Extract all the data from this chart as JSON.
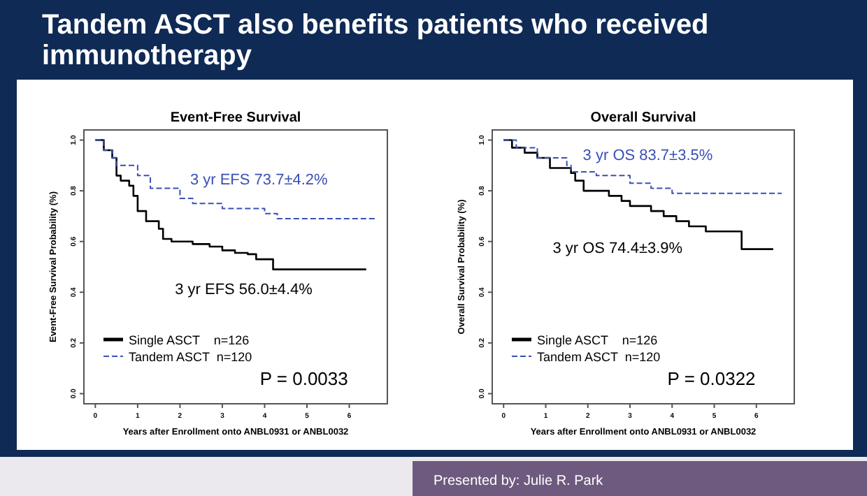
{
  "chart_data": [
    {
      "type": "step",
      "title": "Event-Free Survival",
      "xlabel": "Years after Enrollment onto ANBL0931 or ANBL0032",
      "ylabel": "Event-Free Survival Probability (%)",
      "xlim": [
        -0.27,
        6.9
      ],
      "xticks": [
        0,
        1,
        2,
        3,
        4,
        5,
        6
      ],
      "ylim": [
        -0.04,
        1.04
      ],
      "yticks": [
        {
          "value": 0,
          "label": "0.0"
        },
        {
          "value": 0.2,
          "label": "0.2"
        },
        {
          "value": 0.4,
          "label": "0.4"
        },
        {
          "value": 0.6,
          "label": "0.6"
        },
        {
          "value": 0.8,
          "label": "0.8"
        },
        {
          "value": 1,
          "label": "1.0"
        }
      ],
      "legend": "bottom left",
      "grid": false,
      "series": [
        {
          "name": "Single ASCT    n=126",
          "color": "#000000",
          "line_style": "solid",
          "x": [
            0,
            0.2,
            0.4,
            0.5,
            0.6,
            0.8,
            0.9,
            1.0,
            1.2,
            1.5,
            1.6,
            1.8,
            2.3,
            2.7,
            3.0,
            3.3,
            3.6,
            3.8,
            4.2,
            6.4
          ],
          "values": [
            1,
            0.96,
            0.93,
            0.86,
            0.84,
            0.82,
            0.78,
            0.72,
            0.68,
            0.65,
            0.61,
            0.6,
            0.59,
            0.58,
            0.565,
            0.555,
            0.55,
            0.53,
            0.49,
            0.49
          ]
        },
        {
          "name": "Tandem ASCT  n=120",
          "color": "#3a4fb5",
          "line_style": "dashed",
          "x": [
            0,
            0.2,
            0.4,
            0.5,
            1.0,
            1.3,
            2.0,
            2.3,
            3.0,
            4.0,
            4.3,
            6.6
          ],
          "values": [
            1,
            0.96,
            0.93,
            0.9,
            0.86,
            0.81,
            0.77,
            0.75,
            0.73,
            0.71,
            0.69,
            0.69
          ]
        }
      ],
      "annotations": [
        "3 yr EFS 73.7±4.2%",
        "3 yr EFS 56.0±4.4%",
        "P = 0.0033",
        "Tandem ASCT also benefits patients who received immunotherapy"
      ]
    },
    {
      "type": "step",
      "title": "Overall Survival",
      "xlabel": "Years after Enrollment onto ANBL0931 or ANBL0032",
      "ylabel": "Overall Survival Probability (%)",
      "xlim": [
        -0.27,
        6.9
      ],
      "xticks": [
        0,
        1,
        2,
        3,
        4,
        5,
        6
      ],
      "ylim": [
        -0.04,
        1.04
      ],
      "yticks": [
        {
          "value": 0,
          "label": "0.0"
        },
        {
          "value": 0.2,
          "label": "0.2"
        },
        {
          "value": 0.4,
          "label": "0.4"
        },
        {
          "value": 0.6,
          "label": "0.6"
        },
        {
          "value": 0.8,
          "label": "0.8"
        },
        {
          "value": 1,
          "label": "1.0"
        }
      ],
      "legend": "bottom left",
      "grid": false,
      "series": [
        {
          "name": "Single ASCT    n=126",
          "color": "#000000",
          "line_style": "solid",
          "x": [
            0,
            0.2,
            0.5,
            0.8,
            1.1,
            1.6,
            1.7,
            1.9,
            2.5,
            2.8,
            3.0,
            3.5,
            3.8,
            4.1,
            4.4,
            4.8,
            5.65,
            6.4
          ],
          "values": [
            1,
            0.97,
            0.95,
            0.93,
            0.89,
            0.87,
            0.84,
            0.8,
            0.78,
            0.76,
            0.74,
            0.72,
            0.7,
            0.68,
            0.66,
            0.64,
            0.57,
            0.57
          ]
        },
        {
          "name": "Tandem ASCT  n=120",
          "color": "#3a4fb5",
          "line_style": "dashed",
          "x": [
            0,
            0.3,
            0.8,
            1.5,
            1.6,
            2.2,
            3.0,
            3.5,
            4.0,
            6.6
          ],
          "values": [
            1,
            0.97,
            0.93,
            0.9,
            0.875,
            0.86,
            0.83,
            0.81,
            0.79,
            0.79
          ]
        }
      ],
      "annotations": [
        "3 yr OS 83.7±3.5%",
        "3 yr OS 74.4±3.9%",
        "P = 0.0322",
        "Presented by: Julie R. Park"
      ]
    }
  ]
}
